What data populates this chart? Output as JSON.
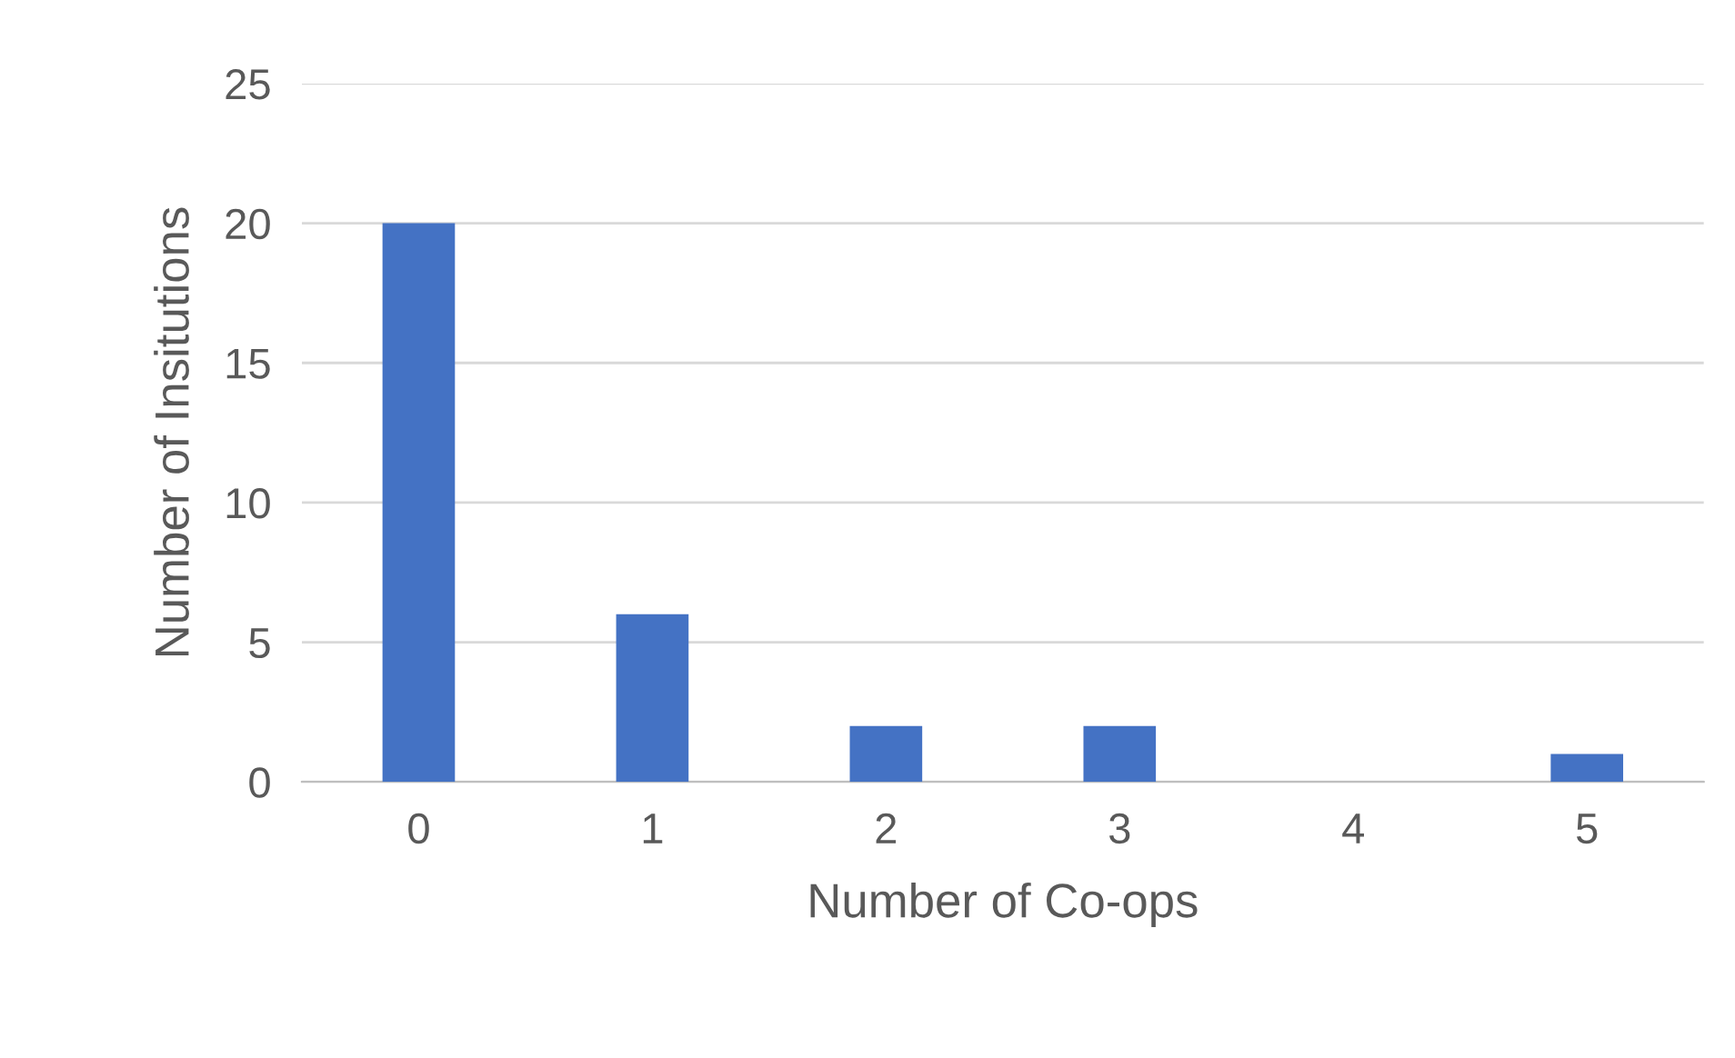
{
  "chart_data": {
    "type": "bar",
    "xlabel": "Number of Co-ops",
    "ylabel": "Number of Insitutions",
    "categories": [
      "0",
      "1",
      "2",
      "3",
      "4",
      "5"
    ],
    "values": [
      20,
      6,
      2,
      2,
      0,
      1
    ],
    "color": "#4472c4",
    "ylim": [
      0,
      25
    ],
    "yticks": [
      0,
      5,
      10,
      15,
      20,
      25
    ],
    "grid": "y",
    "legend": false
  }
}
